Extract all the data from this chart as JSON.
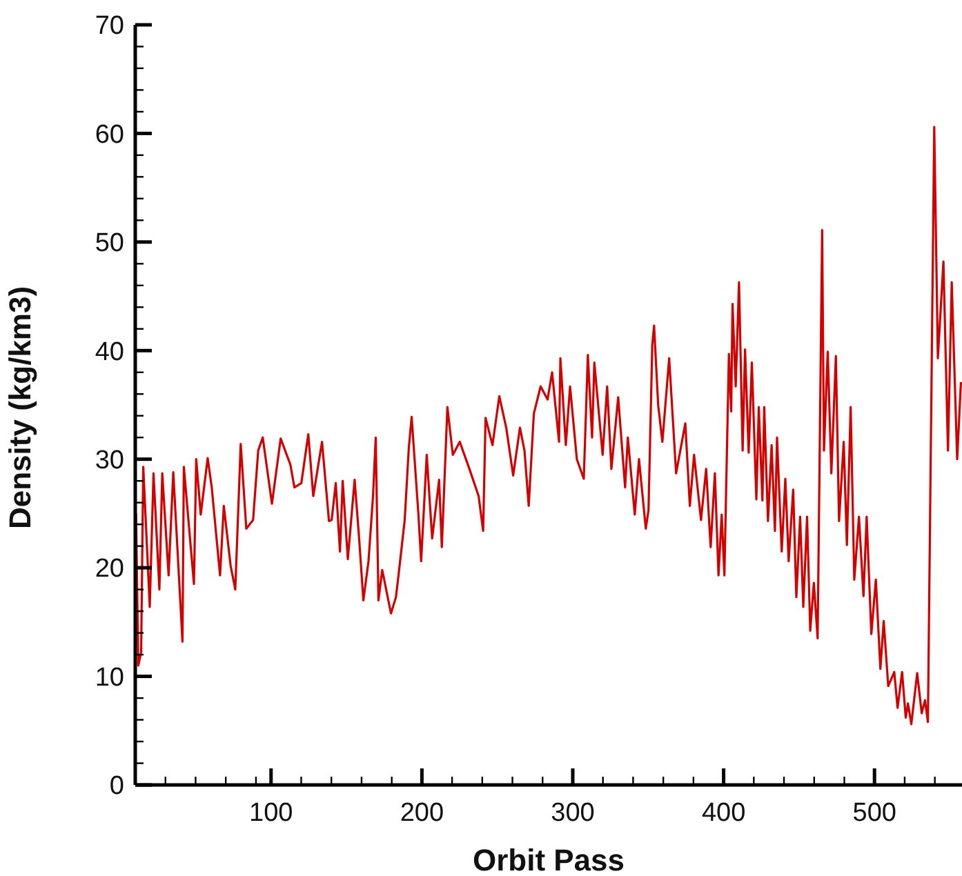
{
  "chart_data": {
    "type": "line",
    "xlabel": "Orbit Pass",
    "ylabel": "Density (kg/km3)",
    "xlim": [
      10,
      558
    ],
    "ylim": [
      0,
      70
    ],
    "xticks": [
      {
        "value": 30,
        "label": null
      },
      {
        "value": 50,
        "label": null
      },
      {
        "value": 70,
        "label": null
      },
      {
        "value": 90,
        "label": null
      },
      100,
      {
        "value": 120,
        "label": null
      },
      {
        "value": 140,
        "label": null
      },
      {
        "value": 160,
        "label": null
      },
      {
        "value": 180,
        "label": null
      },
      200,
      {
        "value": 220,
        "label": null
      },
      {
        "value": 240,
        "label": null
      },
      {
        "value": 260,
        "label": null
      },
      {
        "value": 280,
        "label": null
      },
      300,
      {
        "value": 320,
        "label": null
      },
      {
        "value": 340,
        "label": null
      },
      {
        "value": 360,
        "label": null
      },
      {
        "value": 380,
        "label": null
      },
      400,
      {
        "value": 420,
        "label": null
      },
      {
        "value": 440,
        "label": null
      },
      {
        "value": 460,
        "label": null
      },
      {
        "value": 480,
        "label": null
      },
      500,
      {
        "value": 520,
        "label": null
      },
      {
        "value": 540,
        "label": null
      }
    ],
    "yticks": [
      0,
      {
        "value": 2,
        "label": null
      },
      {
        "value": 4,
        "label": null
      },
      {
        "value": 6,
        "label": null
      },
      {
        "value": 8,
        "label": null
      },
      10,
      {
        "value": 12,
        "label": null
      },
      {
        "value": 14,
        "label": null
      },
      {
        "value": 16,
        "label": null
      },
      {
        "value": 18,
        "label": null
      },
      20,
      {
        "value": 22,
        "label": null
      },
      {
        "value": 24,
        "label": null
      },
      {
        "value": 26,
        "label": null
      },
      {
        "value": 28,
        "label": null
      },
      30,
      {
        "value": 32,
        "label": null
      },
      {
        "value": 34,
        "label": null
      },
      {
        "value": 36,
        "label": null
      },
      {
        "value": 38,
        "label": null
      },
      40,
      {
        "value": 42,
        "label": null
      },
      {
        "value": 44,
        "label": null
      },
      {
        "value": 46,
        "label": null
      },
      {
        "value": 48,
        "label": null
      },
      50,
      {
        "value": 52,
        "label": null
      },
      {
        "value": 54,
        "label": null
      },
      {
        "value": 56,
        "label": null
      },
      {
        "value": 58,
        "label": null
      },
      60,
      {
        "value": 62,
        "label": null
      },
      {
        "value": 64,
        "label": null
      },
      {
        "value": 66,
        "label": null
      },
      {
        "value": 68,
        "label": null
      },
      70
    ],
    "grid": false,
    "legend": false,
    "marker": "none",
    "line_style": "solid",
    "x": [
      10.5,
      12,
      13.9,
      15.3,
      19.6,
      22.1,
      26,
      27.9,
      32.1,
      35.2,
      41.3,
      42.2,
      48.9,
      50.4,
      53.4,
      58,
      60.7,
      66.2,
      68.7,
      73.2,
      76.3,
      79.9,
      83.6,
      88.1,
      91.5,
      94.5,
      100.6,
      106.4,
      112.8,
      115.5,
      120.1,
      124.7,
      128,
      133.8,
      138.4,
      140.2,
      142.9,
      145.7,
      147.5,
      150.9,
      155.4,
      158.4,
      161.2,
      164.6,
      167.6,
      169.4,
      171.2,
      173.7,
      179.5,
      182.8,
      184.9,
      188.6,
      191.3,
      193.2,
      197.7,
      199.5,
      203.2,
      206.8,
      211.4,
      213.2,
      216.9,
      220.5,
      225.1,
      231.5,
      237.6,
      240.6,
      242.2,
      246.8,
      251.3,
      255.9,
      260.5,
      265,
      268,
      270.8,
      274.2,
      278.7,
      283.3,
      286.3,
      290.9,
      291.8,
      295.4,
      298.2,
      302.7,
      307.3,
      310,
      312.8,
      314.3,
      319.8,
      322.8,
      325.6,
      330.1,
      334.7,
      336.5,
      341.1,
      343.9,
      348.4,
      350.2,
      352.7,
      353.9,
      356.6,
      359.4,
      363.9,
      368.5,
      374.6,
      377.6,
      380.4,
      385,
      388.4,
      391.4,
      394.2,
      396.6,
      398.7,
      400.5,
      403.5,
      405,
      405.9,
      408,
      410.2,
      412.6,
      414.2,
      416.6,
      418.7,
      421.7,
      423.3,
      425.7,
      426.9,
      429.4,
      431.8,
      434,
      435.4,
      438.5,
      440.9,
      443.1,
      446.1,
      448.2,
      450.7,
      452.8,
      455.3,
      457.4,
      459.8,
      462.3,
      465.3,
      466.5,
      469,
      471.4,
      474.4,
      476.5,
      479.6,
      481.7,
      484.2,
      486.6,
      489.7,
      492.7,
      494.8,
      497.9,
      500.9,
      503.9,
      506.1,
      509.1,
      513.1,
      515.3,
      518.3,
      520.7,
      522.2,
      524.4,
      528.3,
      531.3,
      533.5,
      535.4,
      539.6,
      542,
      545.7,
      548.7,
      551.2,
      554.8,
      557.3
    ],
    "series": [
      {
        "color": "#d40000",
        "values": [
          25,
          11,
          12.2,
          29.3,
          16.4,
          28.7,
          18,
          28.7,
          19.3,
          28.8,
          13.2,
          29.3,
          18.5,
          30,
          24.9,
          30.1,
          27.4,
          19.3,
          25.7,
          20.2,
          18,
          31.4,
          23.6,
          24.4,
          30.8,
          32,
          25.9,
          31.9,
          29.5,
          27.4,
          27.8,
          32.3,
          26.6,
          31.6,
          24.3,
          24.4,
          27.8,
          21.5,
          28,
          20.8,
          28.1,
          22.7,
          17,
          20.6,
          26.6,
          32,
          17,
          19.8,
          15.8,
          17.3,
          19.8,
          24.4,
          31,
          33.9,
          24.9,
          20.6,
          30.4,
          22.7,
          28.1,
          21.9,
          34.8,
          30.4,
          31.6,
          29.1,
          26.6,
          23.4,
          33.8,
          31.3,
          35.8,
          32.9,
          28.5,
          32.9,
          30.8,
          25.7,
          34.2,
          36.7,
          35.5,
          38,
          31.6,
          39.3,
          31.3,
          36.7,
          30,
          28.2,
          39.6,
          32,
          38.9,
          30.4,
          36.7,
          29.1,
          35.7,
          27.4,
          32,
          24.9,
          30,
          23.6,
          25.3,
          40.5,
          42.3,
          35,
          31.6,
          39.3,
          28.7,
          33.3,
          25.7,
          30.4,
          24.4,
          29.1,
          21.9,
          28.7,
          19.3,
          24.9,
          19.3,
          39.7,
          34.4,
          44.3,
          36.7,
          46.3,
          30.8,
          40.1,
          30.6,
          38.9,
          26.3,
          34.8,
          26.2,
          34.8,
          24.3,
          31.3,
          23.4,
          32,
          21.5,
          28.2,
          20.6,
          27.2,
          17.3,
          24.7,
          16.4,
          24.7,
          14.2,
          18.6,
          13.5,
          51.1,
          30.8,
          39.9,
          28.7,
          39.5,
          24.3,
          31.6,
          22.1,
          34.8,
          18.9,
          24.7,
          17.4,
          24.7,
          13.9,
          18.9,
          10.7,
          15.1,
          9.1,
          10.4,
          7.1,
          10.4,
          6.2,
          7.5,
          5.6,
          10.3,
          6.6,
          7.8,
          5.8,
          60.6,
          39.3,
          48.2,
          30.8,
          46.3,
          30,
          37.1
        ]
      }
    ]
  }
}
